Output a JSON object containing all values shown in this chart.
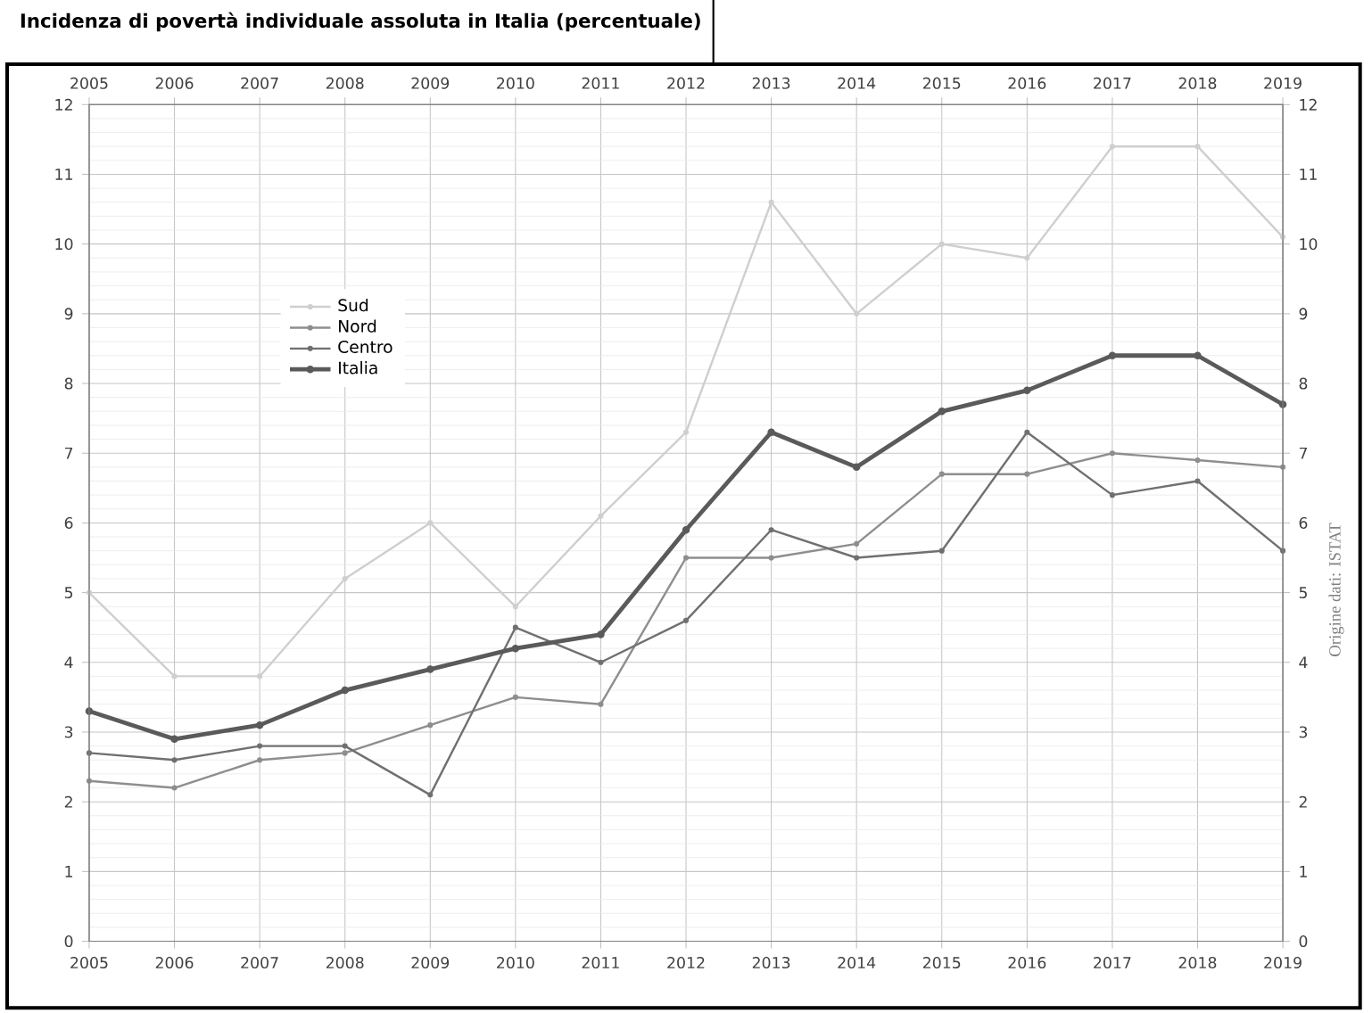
{
  "chart_data": {
    "type": "line",
    "title": "Incidenza di povertà individuale assoluta in Italia (percentuale)",
    "x": [
      2005,
      2006,
      2007,
      2008,
      2009,
      2010,
      2011,
      2012,
      2013,
      2014,
      2015,
      2016,
      2017,
      2018,
      2019
    ],
    "series": [
      {
        "name": "Sud",
        "color": "#cfcfcf",
        "values": [
          5.0,
          3.8,
          3.8,
          5.2,
          6.0,
          4.8,
          6.1,
          7.3,
          10.6,
          9.0,
          10.0,
          9.8,
          11.4,
          11.4,
          10.1
        ]
      },
      {
        "name": "Nord",
        "color": "#8e8e8e",
        "values": [
          2.3,
          2.2,
          2.6,
          2.7,
          3.1,
          3.5,
          3.4,
          5.5,
          5.5,
          5.7,
          6.7,
          6.7,
          7.0,
          6.9,
          6.8
        ]
      },
      {
        "name": "Centro",
        "color": "#707070",
        "values": [
          2.7,
          2.6,
          2.8,
          2.8,
          2.1,
          4.5,
          4.0,
          4.6,
          5.9,
          5.5,
          5.6,
          7.3,
          6.4,
          6.6,
          5.6
        ]
      },
      {
        "name": "Italia",
        "color": "#5a5a5a",
        "values": [
          3.3,
          2.9,
          3.1,
          3.6,
          3.9,
          4.2,
          4.4,
          5.9,
          7.3,
          6.8,
          7.6,
          7.9,
          8.4,
          8.4,
          7.7
        ]
      }
    ],
    "xlim": [
      2005,
      2019
    ],
    "xticks": [
      2005,
      2006,
      2007,
      2008,
      2009,
      2010,
      2011,
      2012,
      2013,
      2014,
      2015,
      2016,
      2017,
      2018,
      2019
    ],
    "x2lim": [
      2005,
      2019
    ],
    "x2ticks": [
      2005,
      2006,
      2007,
      2008,
      2009,
      2010,
      2011,
      2012,
      2013,
      2014,
      2015,
      2016,
      2017,
      2018,
      2019
    ],
    "ylim": [
      0,
      12
    ],
    "yticks": [
      0,
      1,
      2,
      3,
      4,
      5,
      6,
      7,
      8,
      9,
      10,
      11,
      12
    ],
    "y2lim": [
      0,
      12
    ],
    "y2ticks": [
      0,
      1,
      2,
      3,
      4,
      5,
      6,
      7,
      8,
      9,
      10,
      11,
      12
    ],
    "grid": true,
    "legend": "left",
    "marker": "circle",
    "line_style": "solid",
    "annotations": [
      "Origine dati: ISTAT"
    ]
  }
}
